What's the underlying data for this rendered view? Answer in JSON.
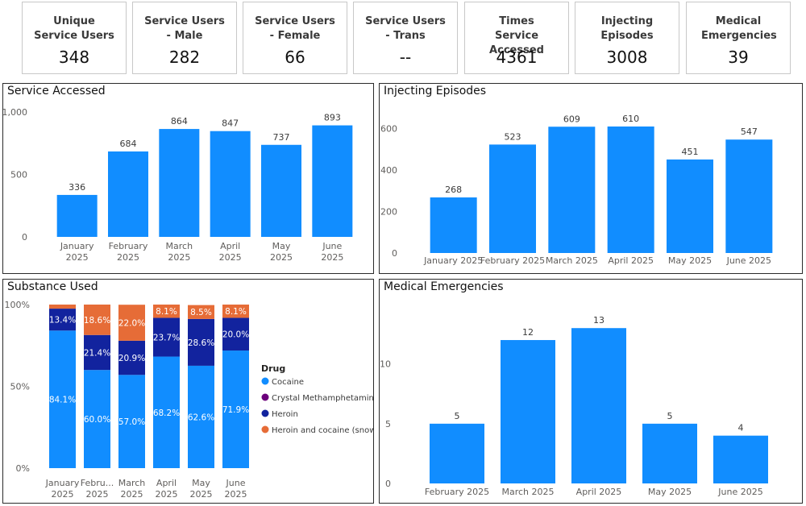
{
  "kpis": [
    {
      "label": "Unique Service Users",
      "value": "348"
    },
    {
      "label": "Service Users - Male",
      "value": "282"
    },
    {
      "label": "Service Users - Female",
      "value": "66"
    },
    {
      "label": "Service Users - Trans",
      "value": "--"
    },
    {
      "label": "Times Service Accessed",
      "value": "4361"
    },
    {
      "label": "Injecting Episodes",
      "value": "3008"
    },
    {
      "label": "Medical Emergencies",
      "value": "39"
    }
  ],
  "colors": {
    "blue": "#118DFF",
    "navy": "#12239E",
    "purple": "#6B007B",
    "orange": "#E66C37"
  },
  "chart_data": [
    {
      "id": "service",
      "type": "bar",
      "title": "Service Accessed",
      "categories": [
        "January 2025",
        "February 2025",
        "March 2025",
        "April 2025",
        "May 2025",
        "June 2025"
      ],
      "values": [
        336,
        684,
        864,
        847,
        737,
        893
      ],
      "yticks": [
        "0",
        "500",
        "1,000"
      ],
      "ylim": [
        0,
        1000
      ]
    },
    {
      "id": "injecting",
      "type": "bar",
      "title": "Injecting Episodes",
      "categories": [
        "January 2025",
        "February 2025",
        "March 2025",
        "April 2025",
        "May 2025",
        "June 2025"
      ],
      "values": [
        268,
        523,
        609,
        610,
        451,
        547
      ],
      "yticks": [
        "0",
        "200",
        "400",
        "600"
      ],
      "ylim": [
        0,
        680
      ]
    },
    {
      "id": "substance",
      "type": "bar",
      "stacked": "percent",
      "title": "Substance Used",
      "categories": [
        "January 2025",
        "Febru... 2025",
        "March 2025",
        "April 2025",
        "May 2025",
        "June 2025"
      ],
      "yticks": [
        "0%",
        "50%",
        "100%"
      ],
      "ylim": [
        0,
        100
      ],
      "legend_title": "Drug",
      "legend_position": "right",
      "series": [
        {
          "name": "Cocaine",
          "values": [
            84.1,
            60.0,
            57.0,
            68.2,
            62.6,
            71.9
          ],
          "labels": [
            "84.1%",
            "60.0%",
            "57.0%",
            "68.2%",
            "62.6%",
            "71.9%"
          ]
        },
        {
          "name": "Crystal Methamphetamine",
          "values": [
            0,
            0,
            0,
            0,
            0,
            0
          ],
          "labels": [
            "",
            "",
            "",
            "",
            "",
            ""
          ]
        },
        {
          "name": "Heroin",
          "values": [
            13.4,
            21.4,
            20.9,
            23.7,
            28.6,
            20.0
          ],
          "labels": [
            "13.4%",
            "21.4%",
            "20.9%",
            "23.7%",
            "28.6%",
            "20.0%"
          ]
        },
        {
          "name": "Heroin and cocaine (snow...",
          "values": [
            2.5,
            18.6,
            22.0,
            8.1,
            8.5,
            8.1
          ],
          "labels": [
            "",
            "18.6%",
            "22.0%",
            "8.1%",
            "8.5%",
            "8.1%"
          ]
        }
      ]
    },
    {
      "id": "medical",
      "type": "bar",
      "title": "Medical Emergencies",
      "categories": [
        "February 2025",
        "March 2025",
        "April 2025",
        "May 2025",
        "June 2025"
      ],
      "values": [
        5,
        12,
        13,
        5,
        4
      ],
      "yticks": [
        "0",
        "5",
        "10"
      ],
      "ylim": [
        0,
        14.7
      ]
    }
  ]
}
